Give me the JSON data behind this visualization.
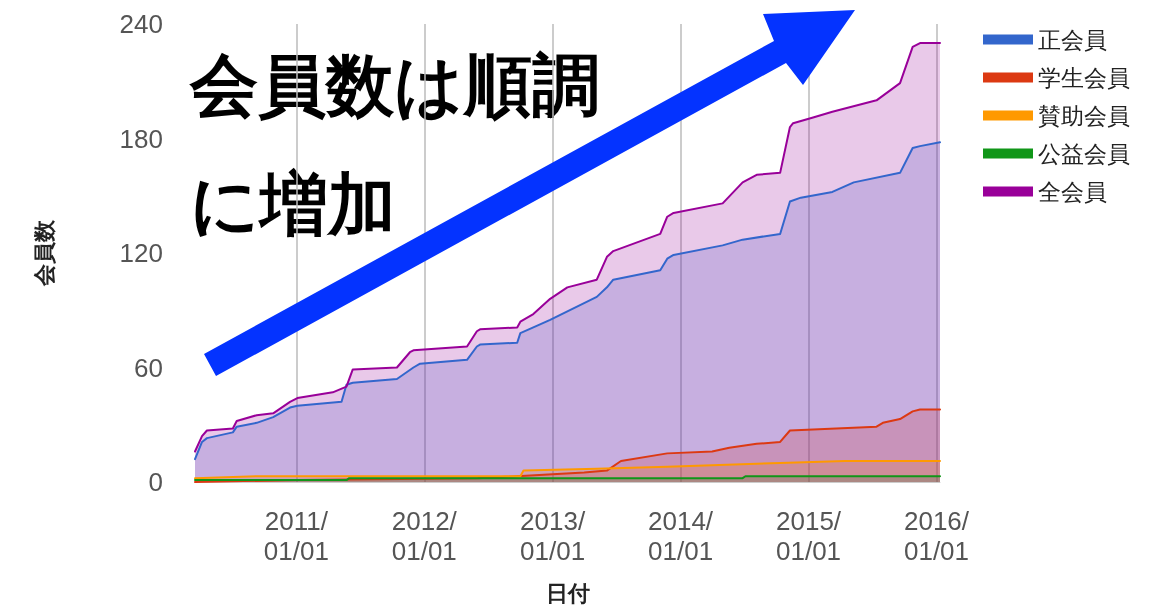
{
  "chart_data": {
    "type": "area",
    "xlabel": "日付",
    "ylabel": "会員数",
    "annotations": [
      "会員数は順調に増加"
    ],
    "xlim": [
      "2010-03-18",
      "2016-01-11"
    ],
    "xticks": [
      {
        "value": "2011-01-01",
        "label": "2011/01/01"
      },
      {
        "value": "2012-01-01",
        "label": "2012/01/01"
      },
      {
        "value": "2013-01-01",
        "label": "2013/01/01"
      },
      {
        "value": "2014-01-01",
        "label": "2014/01/01"
      },
      {
        "value": "2015-01-01",
        "label": "2015/01/01"
      },
      {
        "value": "2016-01-01",
        "label": "2016/01/01"
      }
    ],
    "ylim": [
      0,
      240
    ],
    "yticks": [
      0,
      60,
      120,
      180,
      240
    ],
    "grid": "x",
    "legend": "top right",
    "marker": "none",
    "series": [
      {
        "name": "正会員",
        "color": "#3366cc",
        "x": [
          "2010-03-18",
          "2010-04-07",
          "2010-04-21",
          "2010-07-04",
          "2010-07-15",
          "2010-09-10",
          "2010-10-27",
          "2010-12-14",
          "2011-01-04",
          "2011-05-10",
          "2011-05-24",
          "2011-06-11",
          "2011-10-15",
          "2011-12-01",
          "2011-12-20",
          "2012-05-02",
          "2012-05-30",
          "2012-06-08",
          "2012-09-22",
          "2012-10-01",
          "2012-11-07",
          "2012-12-25",
          "2013-05-07",
          "2013-06-05",
          "2013-06-23",
          "2013-11-04",
          "2013-11-24",
          "2013-12-12",
          "2014-05-01",
          "2014-06-27",
          "2014-10-12",
          "2014-11-09",
          "2014-12-10",
          "2015-03-10",
          "2015-05-10",
          "2015-09-19",
          "2015-10-25",
          "2015-11-15",
          "2016-01-11"
        ],
        "values": [
          12,
          21,
          23,
          26,
          29,
          31,
          34,
          39,
          40,
          42,
          51,
          52,
          54,
          60,
          62,
          64,
          71,
          72,
          73,
          78,
          81,
          85,
          97,
          102,
          106,
          111,
          117,
          119,
          124,
          127,
          130,
          147,
          149,
          152,
          157,
          162,
          175,
          176,
          178
        ]
      },
      {
        "name": "学生会員",
        "color": "#dc3912",
        "x": [
          "2010-03-18",
          "2011-01-01",
          "2012-06-01",
          "2013-01-01",
          "2013-04-01",
          "2013-06-05",
          "2013-07-15",
          "2013-11-24",
          "2014-04-01",
          "2014-05-20",
          "2014-08-06",
          "2014-10-12",
          "2014-11-09",
          "2015-07-14",
          "2015-08-01",
          "2015-09-19",
          "2015-10-25",
          "2015-11-15",
          "2016-01-11"
        ],
        "values": [
          0,
          1,
          2,
          4,
          5,
          6,
          11,
          15,
          16,
          18,
          20,
          21,
          27,
          29,
          31,
          33,
          37,
          38,
          38
        ]
      },
      {
        "name": "賛助会員",
        "color": "#ff9900",
        "x": [
          "2010-03-18",
          "2010-09-10",
          "2012-10-01",
          "2012-10-10",
          "2013-05-07",
          "2013-11-24",
          "2014-10-12",
          "2015-04-15",
          "2016-01-11"
        ],
        "values": [
          2,
          3,
          3,
          6,
          7,
          8,
          10,
          11,
          11
        ]
      },
      {
        "name": "公益会員",
        "color": "#109618",
        "x": [
          "2010-03-18",
          "2011-05-24",
          "2011-06-01",
          "2014-06-27",
          "2014-07-05",
          "2016-01-11"
        ],
        "values": [
          1,
          1,
          2,
          2,
          3,
          3
        ]
      },
      {
        "name": "全会員",
        "color": "#990099",
        "x": [
          "2010-03-18",
          "2010-04-07",
          "2010-04-21",
          "2010-07-04",
          "2010-07-15",
          "2010-09-10",
          "2010-10-27",
          "2010-12-14",
          "2011-01-04",
          "2011-04-15",
          "2011-05-24",
          "2011-06-11",
          "2011-10-15",
          "2011-11-21",
          "2011-12-01",
          "2012-05-02",
          "2012-05-30",
          "2012-06-08",
          "2012-09-22",
          "2012-10-01",
          "2012-11-07",
          "2012-12-25",
          "2013-02-12",
          "2013-05-07",
          "2013-06-05",
          "2013-06-23",
          "2013-11-04",
          "2013-11-24",
          "2013-12-12",
          "2014-05-01",
          "2014-06-27",
          "2014-08-06",
          "2014-10-12",
          "2014-11-09",
          "2014-11-18",
          "2015-01-14",
          "2015-03-10",
          "2015-07-14",
          "2015-09-19",
          "2015-10-25",
          "2015-11-15",
          "2016-01-11"
        ],
        "values": [
          16,
          24,
          27,
          28,
          32,
          35,
          36,
          42,
          44,
          47,
          50,
          59,
          60,
          68,
          69,
          71,
          79,
          80,
          81,
          84,
          88,
          96,
          102,
          106,
          118,
          121,
          130,
          139,
          141,
          146,
          157,
          161,
          162,
          186,
          188,
          191,
          194,
          200,
          209,
          228,
          230,
          230
        ]
      }
    ]
  }
}
